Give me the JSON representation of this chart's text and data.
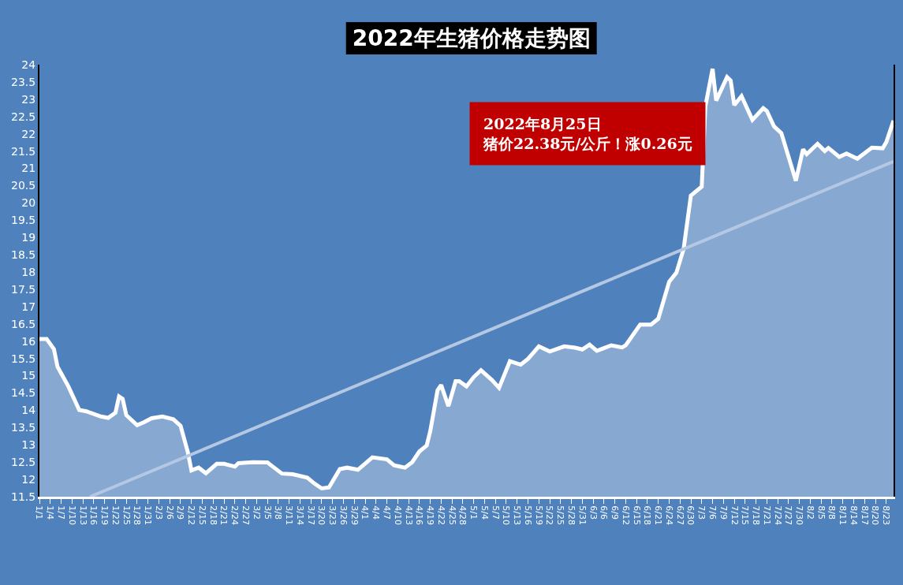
{
  "chart_data": {
    "type": "area",
    "title": "2022年生猪价格走势图",
    "annotations": [
      "2022年8月25日",
      "猪价22.38元/公斤！涨0.26元"
    ],
    "xticks": [
      {
        "value": "2022-01-01",
        "label": "1/1"
      },
      {
        "value": "2022-01-04",
        "label": "1/4"
      },
      {
        "value": "2022-01-07",
        "label": "1/7"
      },
      {
        "value": "2022-01-10",
        "label": "1/10"
      },
      {
        "value": "2022-01-13",
        "label": "1/13"
      },
      {
        "value": "2022-01-16",
        "label": "1/16"
      },
      {
        "value": "2022-01-19",
        "label": "1/19"
      },
      {
        "value": "2022-01-22",
        "label": "1/22"
      },
      {
        "value": "2022-01-25",
        "label": "1/25"
      },
      {
        "value": "2022-01-28",
        "label": "1/28"
      },
      {
        "value": "2022-01-31",
        "label": "1/31"
      },
      {
        "value": "2022-02-03",
        "label": "2/3"
      },
      {
        "value": "2022-02-06",
        "label": "2/6"
      },
      {
        "value": "2022-02-09",
        "label": "2/9"
      },
      {
        "value": "2022-02-12",
        "label": "2/12"
      },
      {
        "value": "2022-02-15",
        "label": "2/15"
      },
      {
        "value": "2022-02-18",
        "label": "2/18"
      },
      {
        "value": "2022-02-21",
        "label": "2/21"
      },
      {
        "value": "2022-02-24",
        "label": "2/24"
      },
      {
        "value": "2022-02-27",
        "label": "2/27"
      },
      {
        "value": "2022-03-02",
        "label": "3/2"
      },
      {
        "value": "2022-03-05",
        "label": "3/5"
      },
      {
        "value": "2022-03-08",
        "label": "3/8"
      },
      {
        "value": "2022-03-11",
        "label": "3/11"
      },
      {
        "value": "2022-03-14",
        "label": "3/14"
      },
      {
        "value": "2022-03-17",
        "label": "3/17"
      },
      {
        "value": "2022-03-20",
        "label": "3/20"
      },
      {
        "value": "2022-03-23",
        "label": "3/23"
      },
      {
        "value": "2022-03-26",
        "label": "3/26"
      },
      {
        "value": "2022-03-29",
        "label": "3/29"
      },
      {
        "value": "2022-04-01",
        "label": "4/1"
      },
      {
        "value": "2022-04-04",
        "label": "4/4"
      },
      {
        "value": "2022-04-07",
        "label": "4/7"
      },
      {
        "value": "2022-04-10",
        "label": "4/10"
      },
      {
        "value": "2022-04-13",
        "label": "4/13"
      },
      {
        "value": "2022-04-16",
        "label": "4/16"
      },
      {
        "value": "2022-04-19",
        "label": "4/19"
      },
      {
        "value": "2022-04-22",
        "label": "4/22"
      },
      {
        "value": "2022-04-25",
        "label": "4/25"
      },
      {
        "value": "2022-04-28",
        "label": "4/28"
      },
      {
        "value": "2022-05-01",
        "label": "5/1"
      },
      {
        "value": "2022-05-04",
        "label": "5/4"
      },
      {
        "value": "2022-05-07",
        "label": "5/7"
      },
      {
        "value": "2022-05-10",
        "label": "5/10"
      },
      {
        "value": "2022-05-13",
        "label": "5/13"
      },
      {
        "value": "2022-05-16",
        "label": "5/16"
      },
      {
        "value": "2022-05-19",
        "label": "5/19"
      },
      {
        "value": "2022-05-22",
        "label": "5/22"
      },
      {
        "value": "2022-05-25",
        "label": "5/25"
      },
      {
        "value": "2022-05-28",
        "label": "5/28"
      },
      {
        "value": "2022-05-31",
        "label": "5/31"
      },
      {
        "value": "2022-06-03",
        "label": "6/3"
      },
      {
        "value": "2022-06-06",
        "label": "6/6"
      },
      {
        "value": "2022-06-09",
        "label": "6/9"
      },
      {
        "value": "2022-06-12",
        "label": "6/12"
      },
      {
        "value": "2022-06-15",
        "label": "6/15"
      },
      {
        "value": "2022-06-18",
        "label": "6/18"
      },
      {
        "value": "2022-06-21",
        "label": "6/21"
      },
      {
        "value": "2022-06-24",
        "label": "6/24"
      },
      {
        "value": "2022-06-27",
        "label": "6/27"
      },
      {
        "value": "2022-06-30",
        "label": "6/30"
      },
      {
        "value": "2022-07-03",
        "label": "7/3"
      },
      {
        "value": "2022-07-06",
        "label": "7/6"
      },
      {
        "value": "2022-07-09",
        "label": "7/9"
      },
      {
        "value": "2022-07-12",
        "label": "7/12"
      },
      {
        "value": "2022-07-15",
        "label": "7/15"
      },
      {
        "value": "2022-07-18",
        "label": "7/18"
      },
      {
        "value": "2022-07-21",
        "label": "7/21"
      },
      {
        "value": "2022-07-24",
        "label": "7/24"
      },
      {
        "value": "2022-07-27",
        "label": "7/27"
      },
      {
        "value": "2022-07-30",
        "label": "7/30"
      },
      {
        "value": "2022-08-02",
        "label": "8/2"
      },
      {
        "value": "2022-08-05",
        "label": "8/5"
      },
      {
        "value": "2022-08-08",
        "label": "8/8"
      },
      {
        "value": "2022-08-11",
        "label": "8/11"
      },
      {
        "value": "2022-08-14",
        "label": "8/14"
      },
      {
        "value": "2022-08-17",
        "label": "8/17"
      },
      {
        "value": "2022-08-20",
        "label": "8/20"
      },
      {
        "value": "2022-08-23",
        "label": "8/23"
      }
    ],
    "xlim": [
      "2022-01-01",
      "2022-08-25"
    ],
    "ylim": [
      11.5,
      24
    ],
    "yticks": [
      11.5,
      12,
      12.5,
      13,
      13.5,
      14,
      14.5,
      15,
      15.5,
      16,
      16.5,
      17,
      17.5,
      18,
      18.5,
      19,
      19.5,
      20,
      20.5,
      21,
      21.5,
      22,
      22.5,
      23,
      23.5,
      24
    ],
    "grid": false,
    "legend": false,
    "series": [
      {
        "color": "#ffffff",
        "x": [
          "2022-01-01",
          "2022-01-03",
          "2022-01-05",
          "2022-01-06",
          "2022-01-09",
          "2022-01-12",
          "2022-01-14",
          "2022-01-15",
          "2022-01-18",
          "2022-01-20",
          "2022-01-22",
          "2022-01-23",
          "2022-01-24",
          "2022-01-25",
          "2022-01-28",
          "2022-01-30",
          "2022-02-01",
          "2022-02-04",
          "2022-02-07",
          "2022-02-09",
          "2022-02-11",
          "2022-02-12",
          "2022-02-14",
          "2022-02-16",
          "2022-02-19",
          "2022-02-21",
          "2022-02-24",
          "2022-02-25",
          "2022-03-01",
          "2022-03-05",
          "2022-03-06",
          "2022-03-09",
          "2022-03-12",
          "2022-03-16",
          "2022-03-18",
          "2022-03-20",
          "2022-03-22",
          "2022-03-25",
          "2022-03-27",
          "2022-03-30",
          "2022-04-03",
          "2022-04-07",
          "2022-04-09",
          "2022-04-12",
          "2022-04-14",
          "2022-04-16",
          "2022-04-18",
          "2022-04-19",
          "2022-04-21",
          "2022-04-22",
          "2022-04-24",
          "2022-04-26",
          "2022-04-27",
          "2022-04-29",
          "2022-05-01",
          "2022-05-03",
          "2022-05-06",
          "2022-05-08",
          "2022-05-11",
          "2022-05-14",
          "2022-05-16",
          "2022-05-19",
          "2022-05-22",
          "2022-05-26",
          "2022-05-29",
          "2022-05-31",
          "2022-06-02",
          "2022-06-04",
          "2022-06-08",
          "2022-06-11",
          "2022-06-12",
          "2022-06-16",
          "2022-06-19",
          "2022-06-21",
          "2022-06-24",
          "2022-06-26",
          "2022-06-28",
          "2022-06-30",
          "2022-07-03",
          "2022-07-04",
          "2022-07-06",
          "2022-07-07",
          "2022-07-10",
          "2022-07-11",
          "2022-07-12",
          "2022-07-14",
          "2022-07-17",
          "2022-07-20",
          "2022-07-21",
          "2022-07-23",
          "2022-07-25",
          "2022-07-27",
          "2022-07-29",
          "2022-07-31",
          "2022-08-01",
          "2022-08-04",
          "2022-08-06",
          "2022-08-07",
          "2022-08-10",
          "2022-08-12",
          "2022-08-15",
          "2022-08-19",
          "2022-08-22",
          "2022-08-23",
          "2022-08-25"
        ],
        "values": [
          16.06,
          16.06,
          15.77,
          15.26,
          14.69,
          14.01,
          13.97,
          13.93,
          13.82,
          13.78,
          13.93,
          14.4,
          14.33,
          13.86,
          13.57,
          13.66,
          13.77,
          13.82,
          13.74,
          13.55,
          12.79,
          12.26,
          12.34,
          12.18,
          12.45,
          12.45,
          12.37,
          12.47,
          12.5,
          12.49,
          12.41,
          12.17,
          12.15,
          12.05,
          11.88,
          11.74,
          11.77,
          12.3,
          12.34,
          12.28,
          12.64,
          12.58,
          12.41,
          12.34,
          12.5,
          12.81,
          12.98,
          13.4,
          14.58,
          14.73,
          14.12,
          14.84,
          14.84,
          14.69,
          14.96,
          15.16,
          14.88,
          14.65,
          15.42,
          15.32,
          15.49,
          15.85,
          15.7,
          15.85,
          15.81,
          15.76,
          15.9,
          15.72,
          15.88,
          15.82,
          15.88,
          16.48,
          16.48,
          16.65,
          17.72,
          17.98,
          18.67,
          20.21,
          20.47,
          22.79,
          23.88,
          22.96,
          23.64,
          23.54,
          22.83,
          23.09,
          22.4,
          22.74,
          22.66,
          22.21,
          22.02,
          21.33,
          20.64,
          21.55,
          21.41,
          21.71,
          21.5,
          21.59,
          21.33,
          21.43,
          21.28,
          21.6,
          21.58,
          21.76,
          22.38
        ]
      },
      {
        "type": "line",
        "color": "#b4c8e4",
        "x": [
          "2022-01-15",
          "2022-08-25"
        ],
        "values": [
          11.5,
          21.2
        ]
      }
    ]
  }
}
